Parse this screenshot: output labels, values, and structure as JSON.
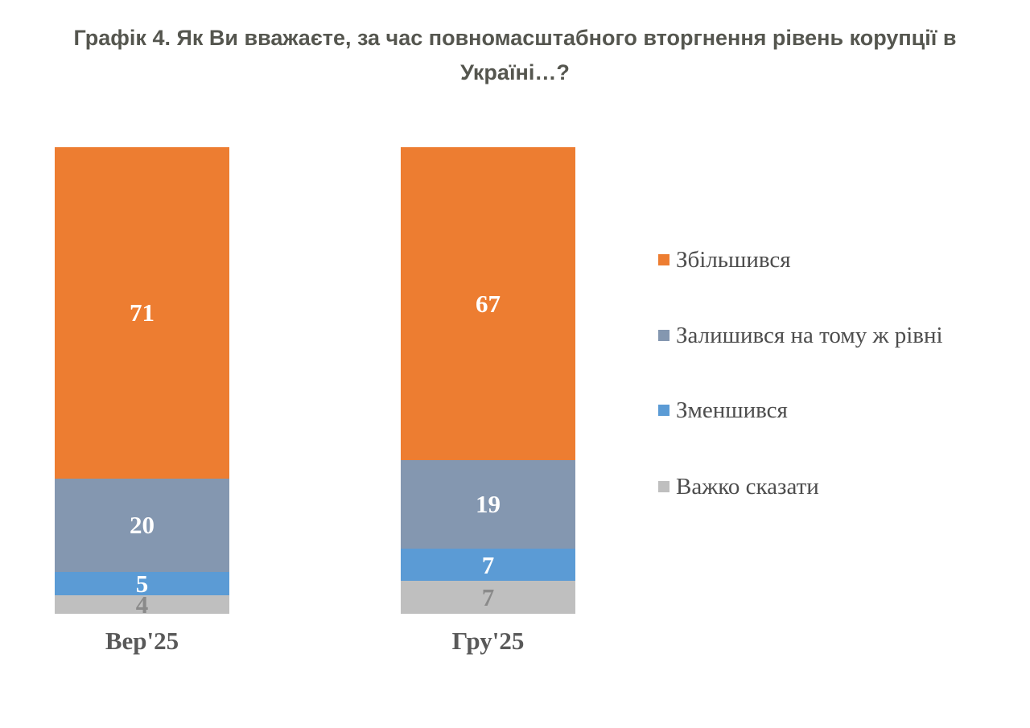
{
  "title": "Графік 4. Як Ви вважаєте, за час повномасштабного вторгнення рівень корупції в Україні…?",
  "chart_data": {
    "type": "bar",
    "stacked": true,
    "orientation": "vertical",
    "title": "Графік 4. Як Ви вважаєте, за час повномасштабного вторгнення рівень корупції в Україні…?",
    "categories": [
      "Вер'25",
      "Гру'25"
    ],
    "series": [
      {
        "name": "Збільшився",
        "values": [
          71,
          67
        ],
        "color": "#ED7D31",
        "label_color": "#FFFFFF"
      },
      {
        "name": "Залишився на тому ж рівні",
        "values": [
          20,
          19
        ],
        "color": "#8497B0",
        "label_color": "#FFFFFF"
      },
      {
        "name": "Зменшився",
        "values": [
          5,
          7
        ],
        "color": "#5B9BD5",
        "label_color": "#FFFFFF"
      },
      {
        "name": "Важко сказати",
        "values": [
          4,
          7
        ],
        "color": "#BFBFBF",
        "label_color": "#8A8A8A"
      }
    ],
    "ylim": [
      0,
      100
    ],
    "grid": false,
    "axis_lines": false,
    "legend_position": "right",
    "value_labels": "inside-center"
  }
}
